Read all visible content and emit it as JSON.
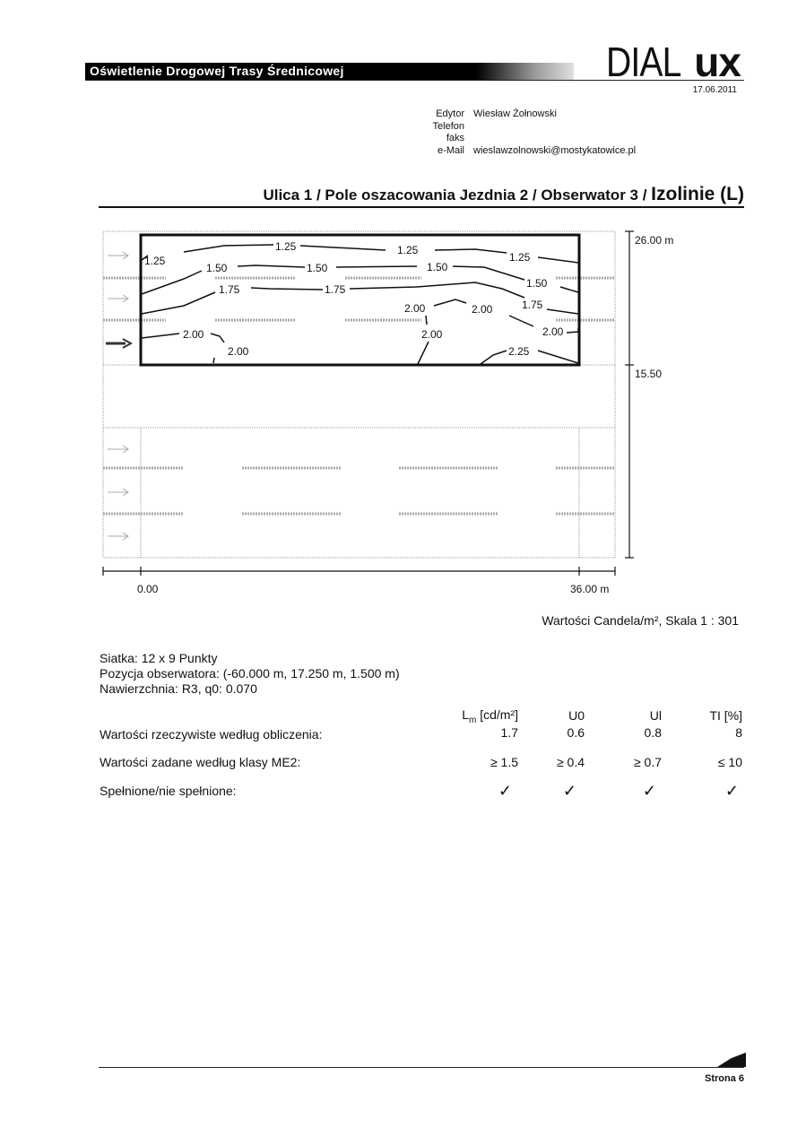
{
  "header": {
    "project_title": "Oświetlenie Drogowej Trasy Średnicowej",
    "logo_text": [
      "DIAL",
      "ux"
    ],
    "date": "17.06.2011"
  },
  "contact": {
    "labels": [
      "Edytor",
      "Telefon",
      "faks",
      "e-Mail"
    ],
    "values": [
      "Wiesław Żołnowski",
      "",
      "",
      "wieslawzolnowski@mostykatowice.pl"
    ]
  },
  "section_title": {
    "main": "Ulica 1 / Pole oszacowania Jezdnia 2 / Obserwator 3 / ",
    "emphasis": "Izolinie (L)"
  },
  "drawing": {
    "isoline_labels": [
      "1.25",
      "1.25",
      "1.25",
      "1.25",
      "1.50",
      "1.50",
      "1.50",
      "1.50",
      "1.75",
      "1.75",
      "1.75",
      "2.00",
      "2.00",
      "2.00",
      "2.00",
      "2.00",
      "2.00",
      "2.25"
    ],
    "dim_vertical": [
      "26.00 m",
      "15.50"
    ],
    "dim_horizontal": [
      "0.00",
      "36.00 m"
    ],
    "observer_lane": 3
  },
  "scale_note": "Wartości Candela/m², Skala 1 : 301",
  "info": [
    "Siatka: 12 x 9 Punkty",
    "Pozycja obserwatora: (-60.000 m, 17.250 m, 1.500 m)",
    "Nawierzchnia: R3, q0: 0.070"
  ],
  "results": {
    "columns": [
      "L",
      "m",
      "[cd/m²]",
      "U0",
      "Ul",
      "TI [%]"
    ],
    "rows": [
      {
        "label": "Wartości rzeczywiste według obliczenia:",
        "values": [
          "1.7",
          "0.6",
          "0.8",
          "8"
        ]
      },
      {
        "label": "Wartości zadane według klasy ME2:",
        "values": [
          "≥ 1.5",
          "≥ 0.4",
          "≥ 0.7",
          "≤ 10"
        ]
      },
      {
        "label": "Spełnione/nie spełnione:",
        "values": [
          "✓",
          "✓",
          "✓",
          "✓"
        ]
      }
    ]
  },
  "footer": {
    "page": "Strona 6"
  }
}
